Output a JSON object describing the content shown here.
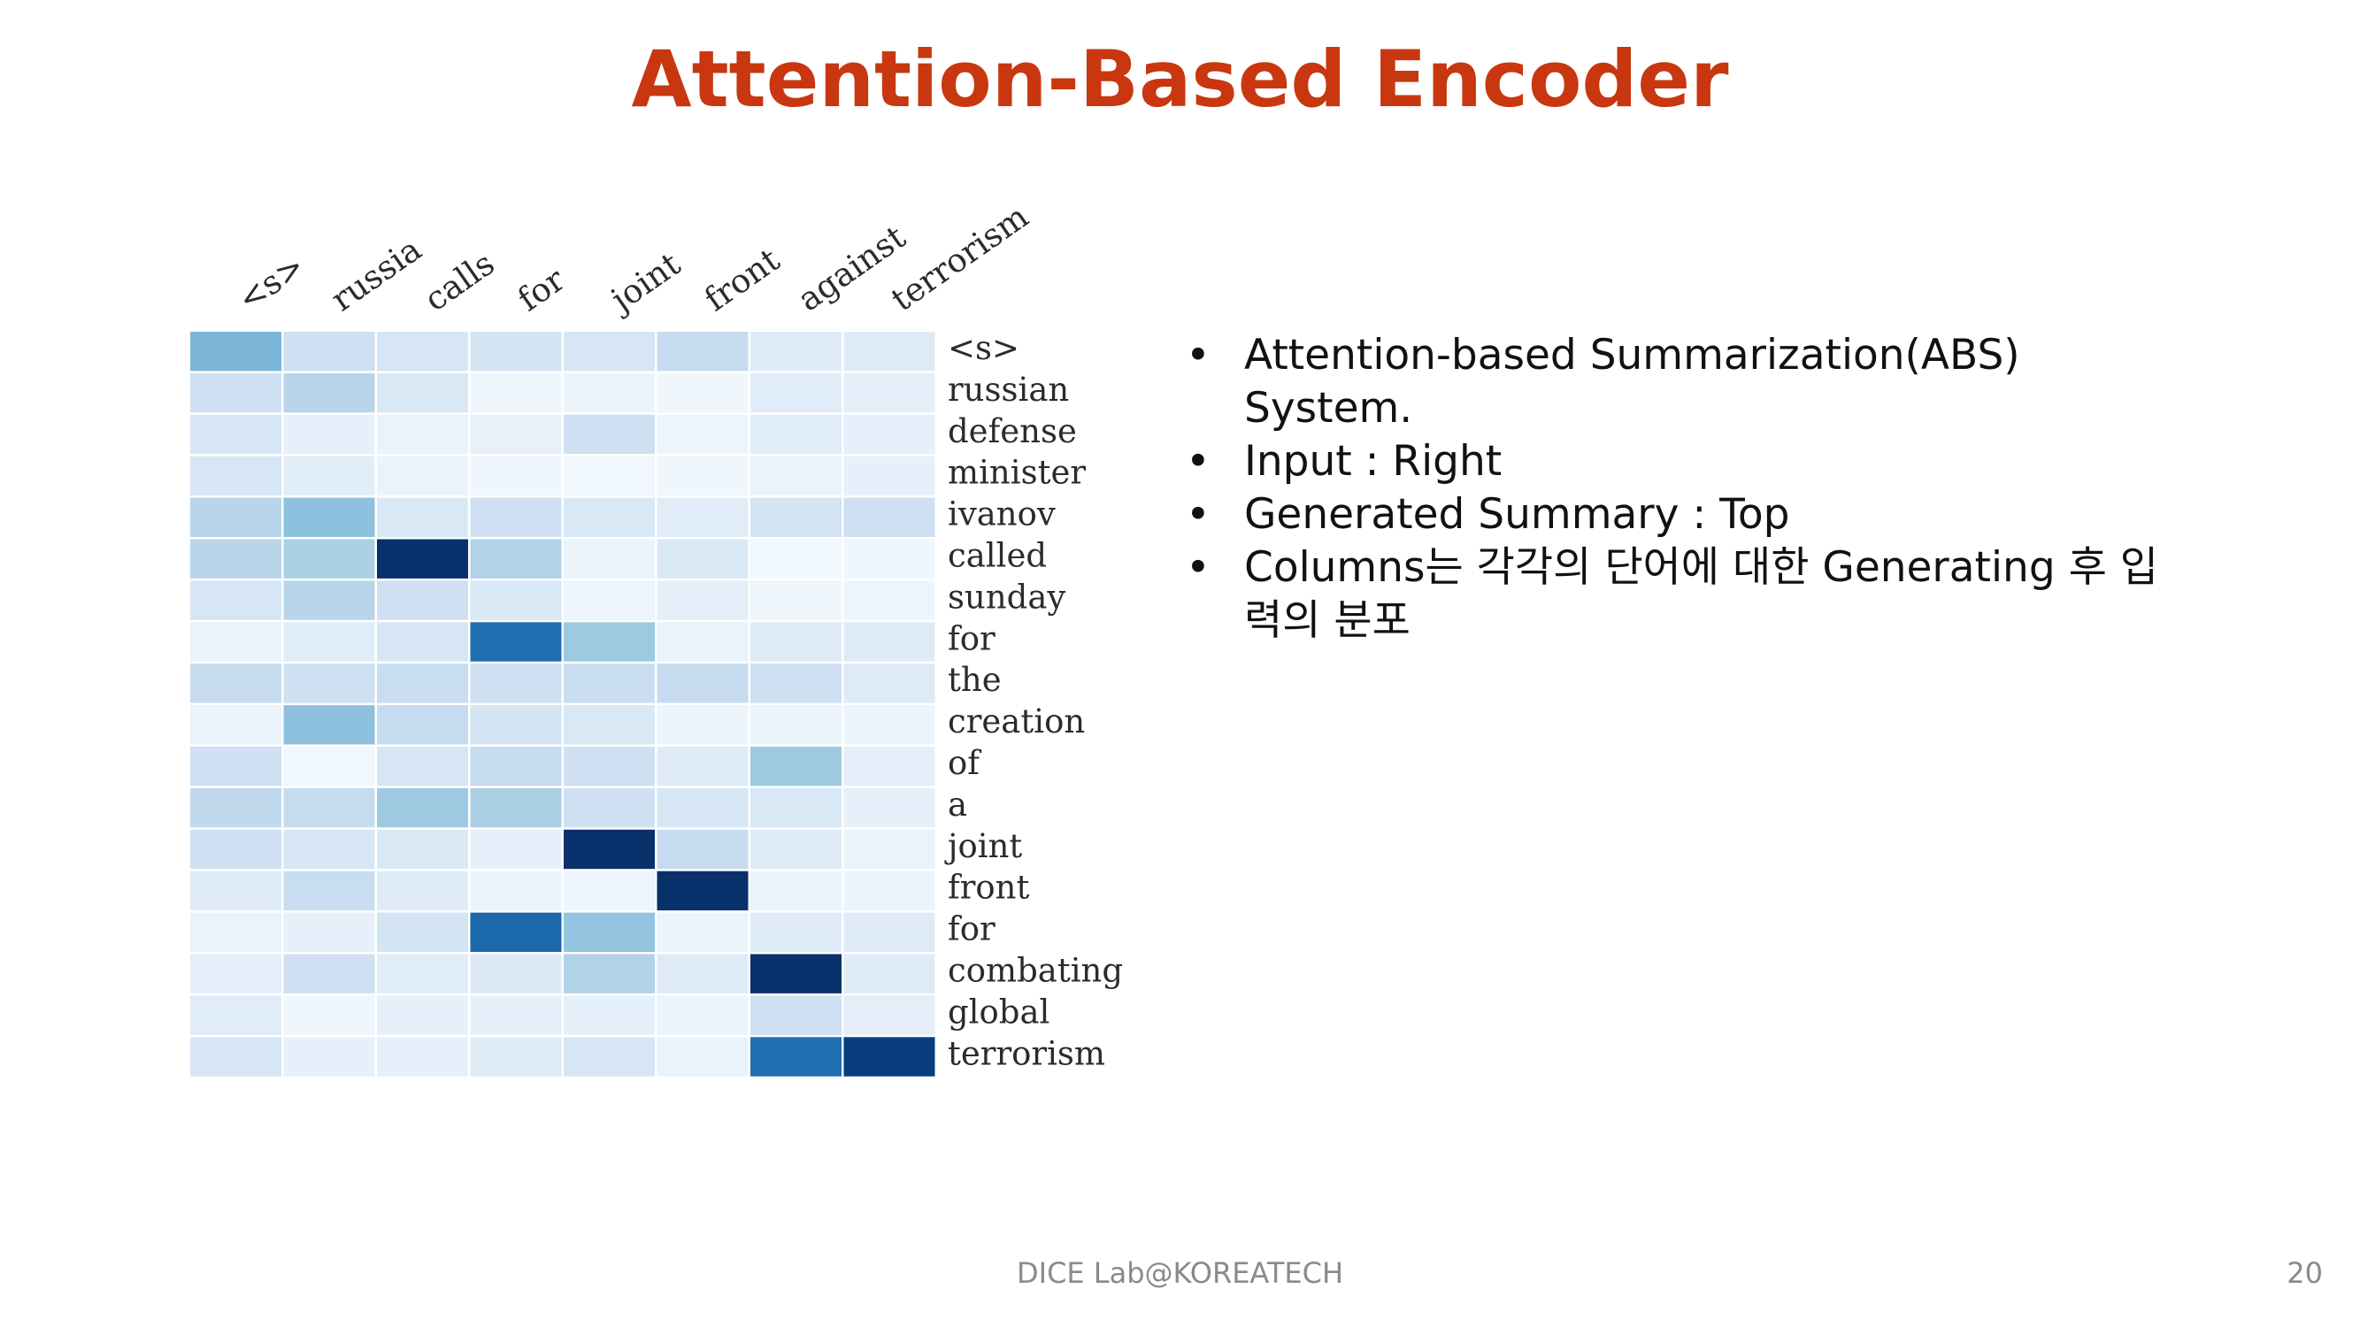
{
  "slide": {
    "title": "Attention-Based Encoder",
    "bullets": [
      "Attention-based Summarization(ABS) System.",
      "Input : Right",
      "Generated Summary : Top",
      "Columns는 각각의 단어에 대한 Generating 후 입력의 분포"
    ],
    "bullet_symbol": "•",
    "footer": "DICE Lab@KOREATECH",
    "page_number": "20"
  },
  "colors": {
    "title": "#c8370f",
    "heatmap_low": "#f7fbff",
    "heatmap_high": "#08306b"
  },
  "chart_data": {
    "type": "heatmap",
    "x_labels": [
      "<s>",
      "russia",
      "calls",
      "for",
      "joint",
      "front",
      "against",
      "terrorism"
    ],
    "y_labels": [
      "<s>",
      "russian",
      "defense",
      "minister",
      "ivanov",
      "called",
      "sunday",
      "for",
      "the",
      "creation",
      "of",
      "a",
      "joint",
      "front",
      "for",
      "combating",
      "global",
      "terrorism"
    ],
    "x_position": "top",
    "y_position": "right",
    "colormap": "Blues",
    "values": [
      [
        0.55,
        0.25,
        0.2,
        0.22,
        0.2,
        0.3,
        0.15,
        0.15
      ],
      [
        0.25,
        0.35,
        0.18,
        0.05,
        0.07,
        0.05,
        0.14,
        0.12
      ],
      [
        0.2,
        0.1,
        0.08,
        0.09,
        0.25,
        0.06,
        0.14,
        0.1
      ],
      [
        0.2,
        0.13,
        0.08,
        0.05,
        0.04,
        0.05,
        0.08,
        0.1
      ],
      [
        0.35,
        0.5,
        0.18,
        0.25,
        0.18,
        0.14,
        0.22,
        0.25
      ],
      [
        0.35,
        0.4,
        1.0,
        0.38,
        0.07,
        0.18,
        0.04,
        0.05
      ],
      [
        0.2,
        0.35,
        0.25,
        0.18,
        0.06,
        0.12,
        0.05,
        0.06
      ],
      [
        0.08,
        0.14,
        0.2,
        0.8,
        0.45,
        0.08,
        0.15,
        0.15
      ],
      [
        0.3,
        0.25,
        0.28,
        0.25,
        0.28,
        0.3,
        0.25,
        0.15
      ],
      [
        0.08,
        0.5,
        0.3,
        0.22,
        0.18,
        0.07,
        0.07,
        0.07
      ],
      [
        0.25,
        0.04,
        0.2,
        0.3,
        0.25,
        0.15,
        0.45,
        0.12
      ],
      [
        0.32,
        0.3,
        0.45,
        0.4,
        0.25,
        0.2,
        0.18,
        0.1
      ],
      [
        0.25,
        0.2,
        0.18,
        0.1,
        1.0,
        0.3,
        0.15,
        0.08
      ],
      [
        0.15,
        0.28,
        0.15,
        0.07,
        0.06,
        1.0,
        0.07,
        0.07
      ],
      [
        0.08,
        0.1,
        0.22,
        0.82,
        0.48,
        0.07,
        0.15,
        0.15
      ],
      [
        0.12,
        0.25,
        0.14,
        0.17,
        0.38,
        0.15,
        1.0,
        0.15
      ],
      [
        0.14,
        0.05,
        0.1,
        0.1,
        0.1,
        0.07,
        0.25,
        0.12
      ],
      [
        0.2,
        0.1,
        0.1,
        0.15,
        0.2,
        0.08,
        0.8,
        0.95
      ]
    ],
    "grid": false,
    "legend": "none",
    "title": "",
    "xlabel": "",
    "ylabel": ""
  }
}
